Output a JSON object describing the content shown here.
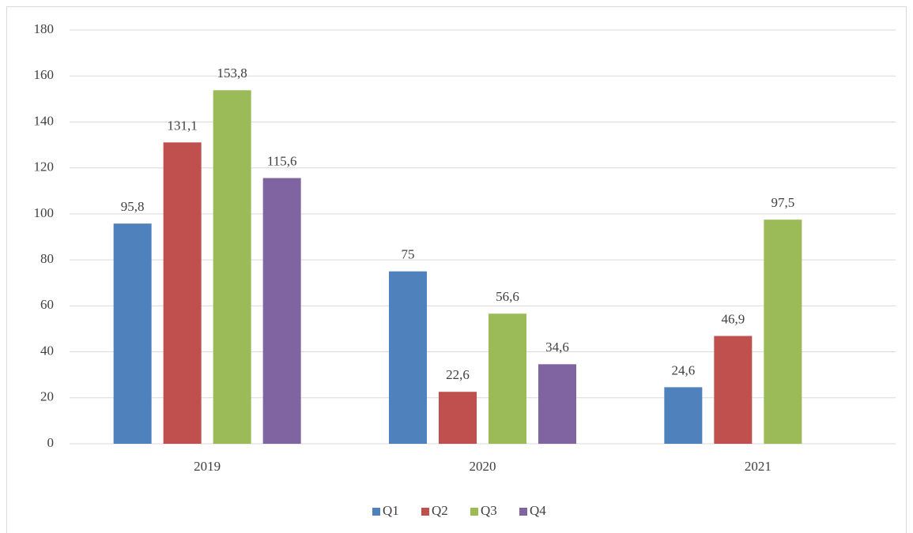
{
  "chart_data": {
    "type": "bar",
    "categories": [
      "2019",
      "2020",
      "2021"
    ],
    "series": [
      {
        "name": "Q1",
        "color": "#4f81bd",
        "values": [
          95.8,
          75,
          24.6
        ],
        "value_labels": [
          "95,8",
          "75",
          "24,6"
        ]
      },
      {
        "name": "Q2",
        "color": "#c0504d",
        "values": [
          131.1,
          22.6,
          46.9
        ],
        "value_labels": [
          "131,1",
          "22,6",
          "46,9"
        ]
      },
      {
        "name": "Q3",
        "color": "#9bbb59",
        "values": [
          153.8,
          56.6,
          97.5
        ],
        "value_labels": [
          "153,8",
          "56,6",
          "97,5"
        ]
      },
      {
        "name": "Q4",
        "color": "#8064a2",
        "values": [
          115.6,
          34.6,
          null
        ],
        "value_labels": [
          "115,6",
          "34,6",
          null
        ]
      }
    ],
    "ylim": [
      0,
      180
    ],
    "yticks": [
      0,
      20,
      40,
      60,
      80,
      100,
      120,
      140,
      160,
      180
    ],
    "grid": true,
    "legend": "bottom"
  }
}
